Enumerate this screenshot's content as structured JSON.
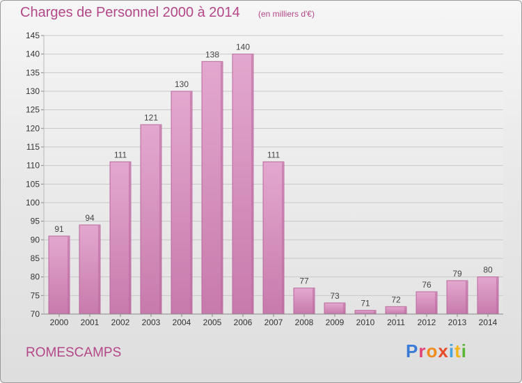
{
  "header": {
    "title": "Charges de Personnel 2000 à 2014",
    "subtitle": "(en milliers d'€)"
  },
  "footer": {
    "commune": "ROMESCAMPS",
    "logo": "Proxiti"
  },
  "colors": {
    "bar_fill": "#dc9cc6",
    "bar_shade": "#b9679d",
    "title": "#b34788"
  },
  "chart_data": {
    "type": "bar",
    "title": "Charges de Personnel 2000 à 2014",
    "subtitle": "(en milliers d'€)",
    "categories": [
      "2000",
      "2001",
      "2002",
      "2003",
      "2004",
      "2005",
      "2006",
      "2007",
      "2008",
      "2009",
      "2010",
      "2011",
      "2012",
      "2013",
      "2014"
    ],
    "values": [
      91,
      94,
      111,
      121,
      130,
      138,
      140,
      111,
      77,
      73,
      71,
      72,
      76,
      79,
      80
    ],
    "ylim": [
      70,
      145
    ],
    "yticks": [
      70,
      75,
      80,
      85,
      90,
      95,
      100,
      105,
      110,
      115,
      120,
      125,
      130,
      135,
      140,
      145
    ],
    "grid": true,
    "legend": "none"
  }
}
